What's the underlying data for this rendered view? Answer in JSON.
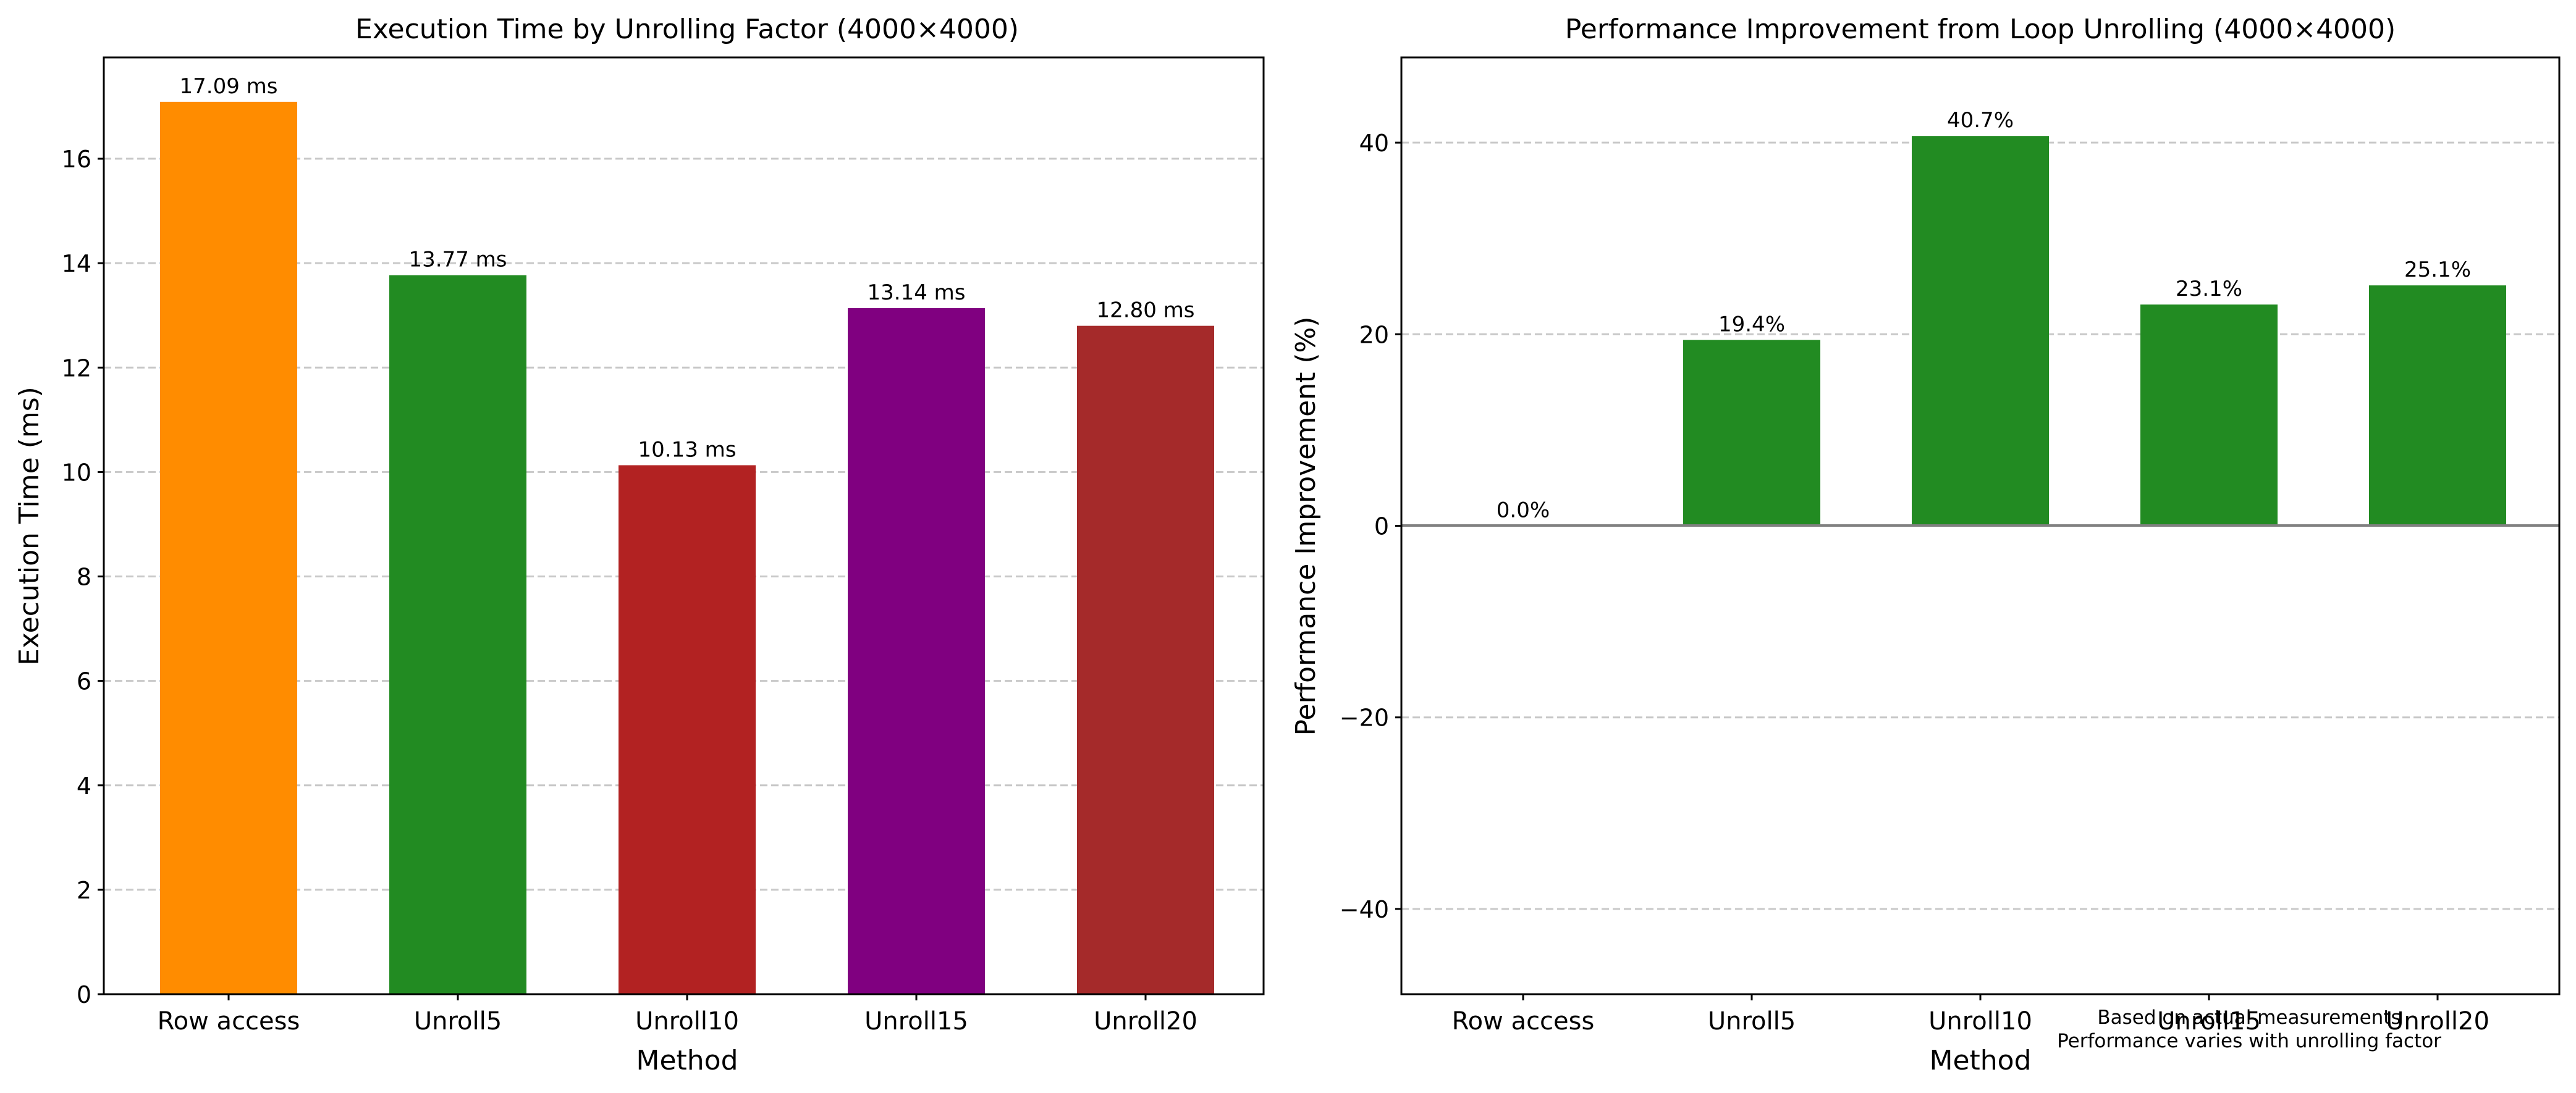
{
  "chart_data": [
    {
      "type": "bar",
      "title": "Execution Time by Unrolling Factor (4000×4000)",
      "xlabel": "Method",
      "ylabel": "Execution Time (ms)",
      "categories": [
        "Row access",
        "Unroll5",
        "Unroll10",
        "Unroll15",
        "Unroll20"
      ],
      "values": [
        17.09,
        13.77,
        10.13,
        13.14,
        12.8
      ],
      "data_labels": [
        "17.09 ms",
        "13.77 ms",
        "10.13 ms",
        "13.14 ms",
        "12.80 ms"
      ],
      "colors": [
        "#ff8c00",
        "#228b22",
        "#b22222",
        "#800080",
        "#a52a2a"
      ],
      "ylim": [
        0,
        17.94
      ],
      "yticks": [
        0,
        2,
        4,
        6,
        8,
        10,
        12,
        14,
        16
      ],
      "grid": "y-dashed"
    },
    {
      "type": "bar",
      "title": "Performance Improvement from Loop Unrolling (4000×4000)",
      "xlabel": "Method",
      "ylabel": "Performance Improvement (%)",
      "categories": [
        "Row access",
        "Unroll5",
        "Unroll10",
        "Unroll15",
        "Unroll20"
      ],
      "values": [
        0.0,
        19.4,
        40.7,
        23.1,
        25.1
      ],
      "data_labels": [
        "0.0%",
        "19.4%",
        "40.7%",
        "23.1%",
        "25.1%"
      ],
      "colors": [
        "#228b22",
        "#228b22",
        "#228b22",
        "#228b22",
        "#228b22"
      ],
      "ylim": [
        -48.9,
        48.9
      ],
      "yticks": [
        -40,
        -20,
        0,
        20,
        40
      ],
      "ytick_labels": [
        "−40",
        "−20",
        "0",
        "20",
        "40"
      ],
      "zero_line": true,
      "grid": "y-dashed",
      "annotation": [
        "Based on actual measurements",
        "Performance varies with unrolling factor"
      ]
    }
  ]
}
